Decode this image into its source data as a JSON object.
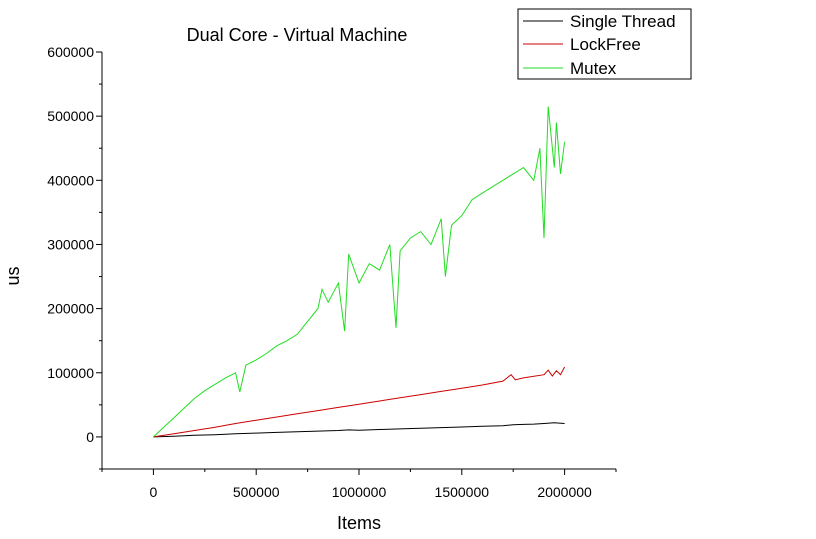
{
  "chart_data": {
    "type": "line",
    "title": "Dual Core - Virtual Machine",
    "xlabel": "Items",
    "ylabel": "us",
    "xlim": [
      -250000,
      2250000
    ],
    "ylim": [
      -50000,
      600000
    ],
    "x_ticks": [
      0,
      500000,
      1000000,
      1500000,
      2000000
    ],
    "x_tick_labels": [
      "0",
      "500000",
      "1000000",
      "1500000",
      "2000000"
    ],
    "y_ticks": [
      0,
      100000,
      200000,
      300000,
      400000,
      500000,
      600000
    ],
    "y_tick_labels": [
      "0",
      "100000",
      "200000",
      "300000",
      "400000",
      "500000",
      "600000"
    ],
    "grid": false,
    "legend_position": "top-right",
    "series": [
      {
        "name": "Single Thread",
        "color": "#000000",
        "x": [
          0,
          100000,
          200000,
          300000,
          400000,
          500000,
          600000,
          700000,
          800000,
          900000,
          950000,
          1000000,
          1100000,
          1200000,
          1300000,
          1400000,
          1500000,
          1600000,
          1700000,
          1750000,
          1800000,
          1850000,
          1900000,
          1950000,
          2000000
        ],
        "values": [
          0,
          1000,
          2500,
          3500,
          5000,
          6000,
          7000,
          8000,
          9000,
          10000,
          11000,
          10500,
          11500,
          12500,
          13500,
          14500,
          15500,
          16500,
          17500,
          19000,
          19500,
          20000,
          21000,
          22000,
          21000
        ]
      },
      {
        "name": "LockFree",
        "color": "#cc0000",
        "x": [
          0,
          100000,
          200000,
          300000,
          400000,
          500000,
          600000,
          700000,
          800000,
          900000,
          1000000,
          1100000,
          1200000,
          1300000,
          1400000,
          1500000,
          1600000,
          1700000,
          1740000,
          1760000,
          1800000,
          1900000,
          1920000,
          1940000,
          1960000,
          1980000,
          2000000
        ],
        "values": [
          0,
          5000,
          10000,
          15000,
          21000,
          26000,
          31000,
          36000,
          41000,
          46000,
          51000,
          56000,
          61000,
          66000,
          71000,
          76000,
          81000,
          87000,
          97000,
          89000,
          92000,
          97000,
          104000,
          95000,
          103000,
          97000,
          109000
        ]
      },
      {
        "name": "Mutex",
        "color": "#22dd22",
        "x": [
          0,
          50000,
          100000,
          150000,
          200000,
          250000,
          300000,
          350000,
          400000,
          420000,
          450000,
          500000,
          550000,
          600000,
          650000,
          700000,
          750000,
          800000,
          820000,
          850000,
          900000,
          930000,
          950000,
          1000000,
          1050000,
          1100000,
          1150000,
          1180000,
          1200000,
          1250000,
          1300000,
          1350000,
          1400000,
          1420000,
          1450000,
          1500000,
          1550000,
          1600000,
          1650000,
          1700000,
          1750000,
          1800000,
          1850000,
          1880000,
          1900000,
          1920000,
          1950000,
          1960000,
          1980000,
          2000000
        ],
        "values": [
          0,
          15000,
          30000,
          45000,
          60000,
          72000,
          82000,
          92000,
          100000,
          70000,
          112000,
          120000,
          130000,
          142000,
          150000,
          160000,
          180000,
          200000,
          230000,
          210000,
          240000,
          165000,
          285000,
          240000,
          270000,
          260000,
          300000,
          170000,
          290000,
          310000,
          320000,
          300000,
          340000,
          250000,
          330000,
          345000,
          370000,
          380000,
          390000,
          400000,
          410000,
          420000,
          400000,
          450000,
          310000,
          515000,
          420000,
          490000,
          410000,
          460000
        ]
      }
    ]
  }
}
